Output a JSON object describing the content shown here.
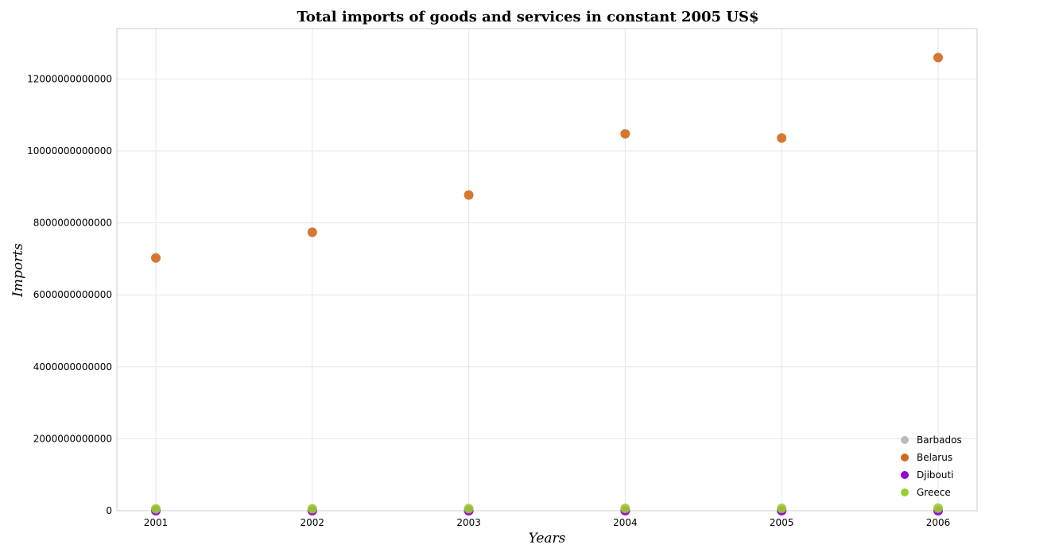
{
  "chart_data": {
    "type": "scatter",
    "title": "Total imports of goods and services in constant 2005 US$",
    "xlabel": "Years",
    "ylabel": "Imports",
    "categories": [
      "2001",
      "2002",
      "2003",
      "2004",
      "2005",
      "2006"
    ],
    "ylim": [
      0,
      13400000000000
    ],
    "yticks": [
      0,
      2000000000000,
      4000000000000,
      6000000000000,
      8000000000000,
      10000000000000,
      12000000000000
    ],
    "ytick_labels": [
      "0",
      "2000000000000",
      "4000000000000",
      "6000000000000",
      "8000000000000",
      "10000000000000",
      "12000000000000"
    ],
    "grid": true,
    "legend_position": "bottom-right",
    "series": [
      {
        "name": "Barbados",
        "color": "#bbbbbb",
        "values": [
          1400000000,
          1400000000,
          1500000000,
          1600000000,
          1700000000,
          1800000000
        ]
      },
      {
        "name": "Belarus",
        "color": "#d2691e",
        "values": [
          7025000000000,
          7740000000000,
          8775000000000,
          10475000000000,
          10360000000000,
          12595000000000
        ]
      },
      {
        "name": "Djibouti",
        "color": "#9400d3",
        "values": [
          300000000,
          300000000,
          330000000,
          350000000,
          380000000,
          400000000
        ]
      },
      {
        "name": "Greece",
        "color": "#9acd32",
        "values": [
          54000000000,
          55000000000,
          61000000000,
          67000000000,
          65000000000,
          72000000000
        ]
      }
    ]
  }
}
